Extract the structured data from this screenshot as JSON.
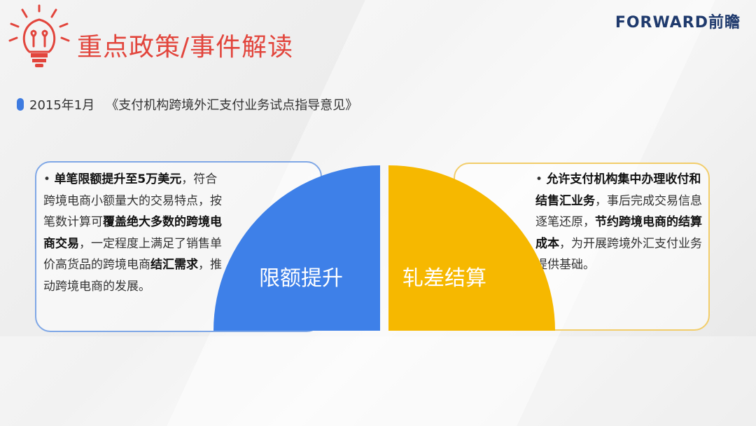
{
  "header": {
    "title": "重点政策/事件解读",
    "logo_text": "FORWARD前瞻",
    "icon": "lightbulb-icon"
  },
  "subtitle": {
    "date": "2015年1月",
    "document": "《支付机构跨境外汇支付业务试点指导意见》"
  },
  "colors": {
    "title": "#e2453c",
    "blue": "#3e80e8",
    "yellow": "#f6b800"
  },
  "left": {
    "label": "限额提升",
    "segments": [
      {
        "t": "• ",
        "b": false
      },
      {
        "t": "单笔限额提升至5万美元",
        "b": true
      },
      {
        "t": "，符合跨境电商小额量大的交易特点，按笔数计算可",
        "b": false
      },
      {
        "t": "覆盖绝大多数的跨境电商交易",
        "b": true
      },
      {
        "t": "，一定程度上满足了销售单价高货品的跨境电商",
        "b": false
      },
      {
        "t": "结汇需求",
        "b": true
      },
      {
        "t": "，推动跨境电商的发展。",
        "b": false
      }
    ]
  },
  "right": {
    "label": "轧差结算",
    "segments": [
      {
        "t": "• ",
        "b": false
      },
      {
        "t": "允许支付机构集中办理收付和结售汇业务",
        "b": true
      },
      {
        "t": "，事后完成交易信息逐笔还原，",
        "b": false
      },
      {
        "t": "节约跨境电商的结算成本",
        "b": true
      },
      {
        "t": "，为开展跨境外汇支付业务提供基础。",
        "b": false
      }
    ]
  }
}
